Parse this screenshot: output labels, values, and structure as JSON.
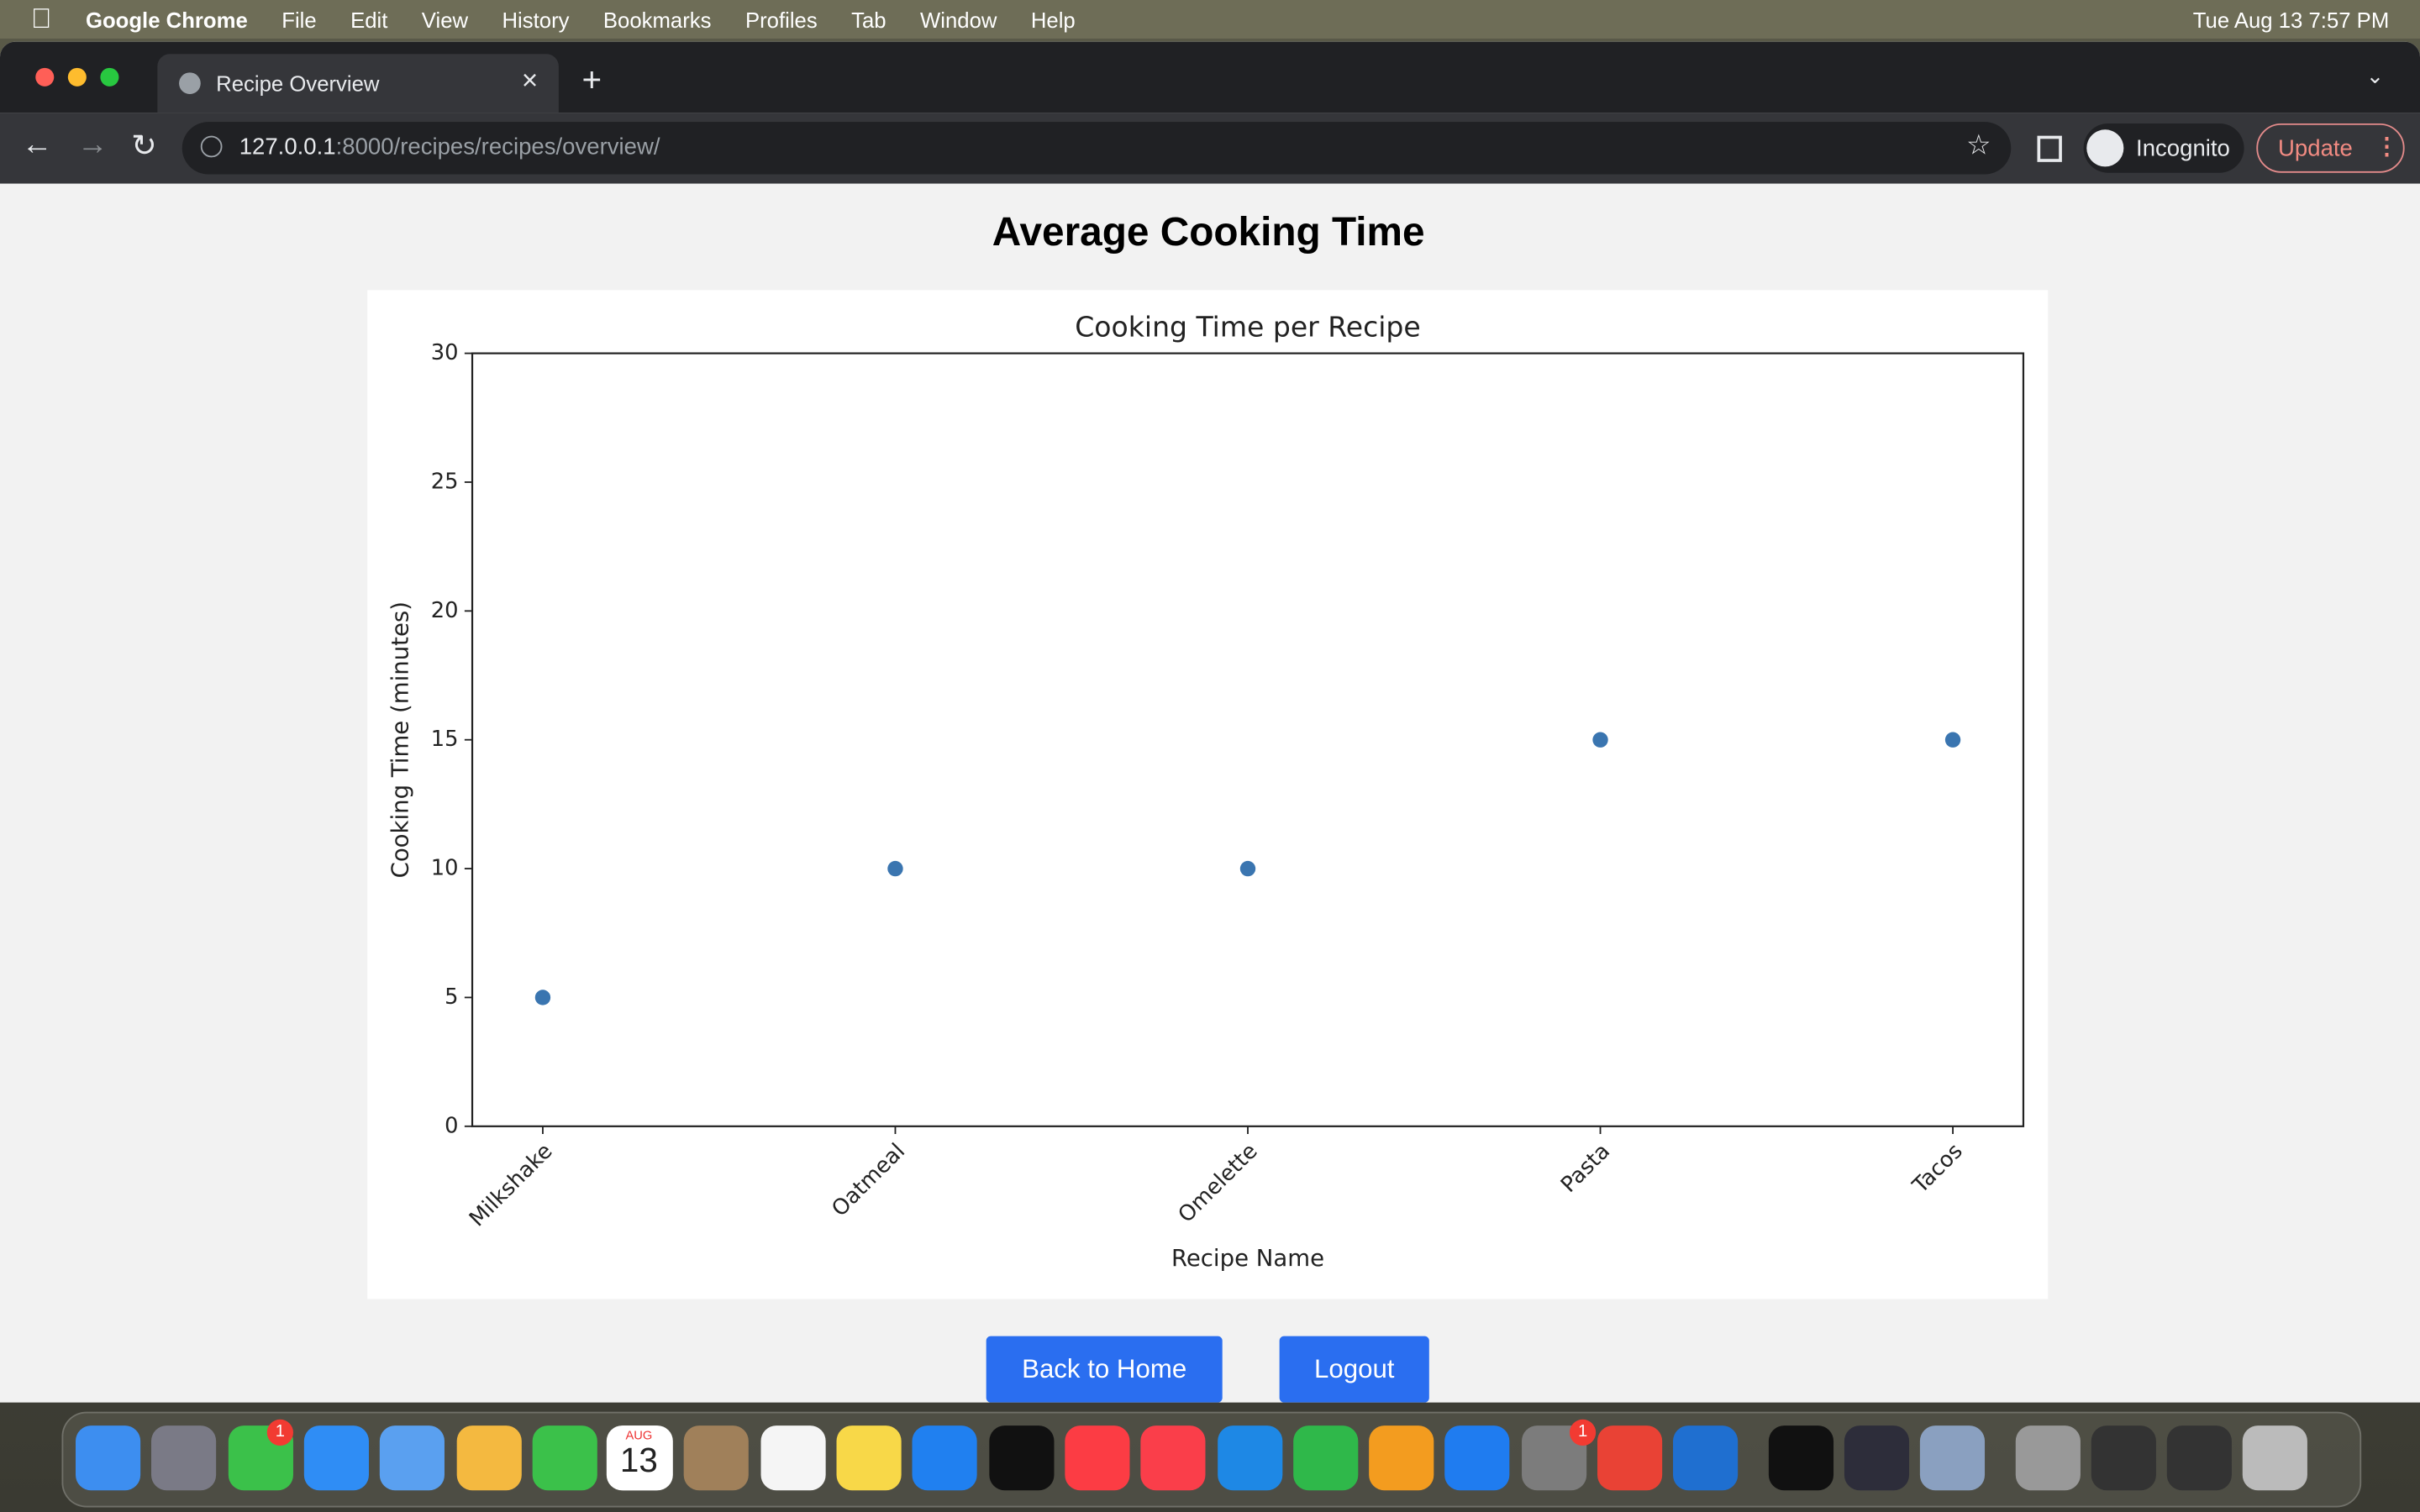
{
  "menu_bar": {
    "app": "Google Chrome",
    "items": [
      "File",
      "Edit",
      "View",
      "History",
      "Bookmarks",
      "Profiles",
      "Tab",
      "Window",
      "Help"
    ],
    "clock": "Tue Aug 13  7:57 PM"
  },
  "browser": {
    "tab_title": "Recipe Overview",
    "url_host": "127.0.0.1",
    "url_rest": ":8000/recipes/recipes/overview/",
    "profile": "Incognito",
    "update": "Update"
  },
  "page": {
    "heading": "Average Cooking Time",
    "buttons": [
      "Back to Home",
      "Logout"
    ]
  },
  "dock": {
    "calendar_month": "AUG",
    "calendar_day": "13",
    "badges": [
      "1",
      "1"
    ]
  },
  "chart_data": {
    "type": "scatter",
    "title": "Cooking Time per Recipe",
    "x_label": "Recipe Name",
    "y_label": "Cooking Time (minutes)",
    "categories": [
      "Milkshake",
      "Oatmeal",
      "Omelette",
      "Pasta",
      "Tacos"
    ],
    "values": [
      5,
      10,
      10,
      15,
      15
    ],
    "color": "#3a75b0",
    "ylim": [
      0,
      30
    ],
    "yticks": [
      0,
      5,
      10,
      15,
      20,
      25,
      30
    ]
  }
}
